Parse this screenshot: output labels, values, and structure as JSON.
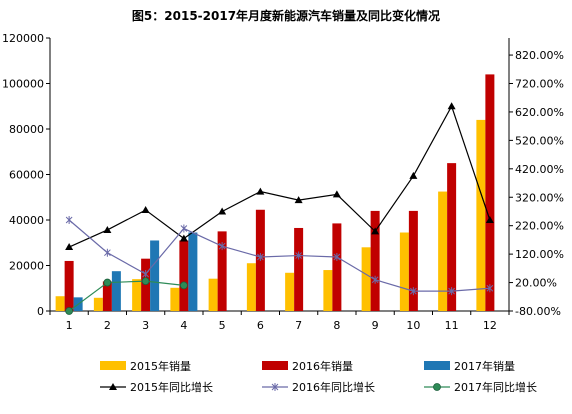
{
  "chart_data": {
    "type": "bar",
    "title": "图5：2015-2017年月度新能源汽车销量及同比变化情况",
    "categories": [
      "1",
      "2",
      "3",
      "4",
      "5",
      "6",
      "7",
      "8",
      "9",
      "10",
      "11",
      "12"
    ],
    "left_axis": {
      "min": 0,
      "max": 120000,
      "step": 20000,
      "ticks": [
        "0",
        "20000",
        "40000",
        "60000",
        "80000",
        "100000",
        "120000"
      ]
    },
    "right_axis": {
      "min": -80,
      "max": 880,
      "ticks": [
        "-80.00%",
        "20.00%",
        "120.00%",
        "220.00%",
        "320.00%",
        "420.00%",
        "520.00%",
        "620.00%",
        "720.00%",
        "820.00%"
      ]
    },
    "bar_series": [
      {
        "name": "2015年销量",
        "color": "#FFC000",
        "values": [
          6500,
          5800,
          14000,
          10200,
          14200,
          21000,
          16800,
          18000,
          28000,
          34500,
          52500,
          84000
        ]
      },
      {
        "name": "2016年销量",
        "color": "#C00000",
        "values": [
          22000,
          13000,
          23000,
          31000,
          35000,
          44500,
          36500,
          38500,
          44000,
          44000,
          65000,
          104000
        ]
      },
      {
        "name": "2017年销量",
        "color": "#1F77B4",
        "values": [
          6000,
          17500,
          31000,
          34500,
          null,
          null,
          null,
          null,
          null,
          null,
          null,
          null
        ]
      }
    ],
    "line_series": [
      {
        "name": "2015年同比增长",
        "color": "#000000",
        "marker": "triangle",
        "values": [
          145,
          205,
          275,
          175,
          270,
          340,
          310,
          330,
          200,
          395,
          640,
          240
        ]
      },
      {
        "name": "2016年同比增长",
        "color": "#6A6AA8",
        "marker": "star",
        "values": [
          240,
          125,
          50,
          210,
          148,
          110,
          115,
          110,
          30,
          -10,
          -10,
          0
        ]
      },
      {
        "name": "2017年同比增长",
        "color": "#2E8B57",
        "marker": "circle",
        "values": [
          -80,
          20,
          25,
          10,
          null,
          null,
          null,
          null,
          null,
          null,
          null,
          null
        ]
      }
    ]
  }
}
